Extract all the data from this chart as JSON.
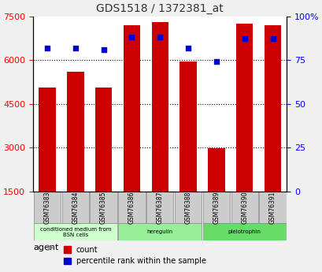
{
  "title": "GDS1518 / 1372381_at",
  "samples": [
    "GSM76383",
    "GSM76384",
    "GSM76385",
    "GSM76386",
    "GSM76387",
    "GSM76388",
    "GSM76389",
    "GSM76390",
    "GSM76391"
  ],
  "counts": [
    5050,
    5600,
    5050,
    7200,
    7300,
    5950,
    2980,
    7250,
    7200
  ],
  "percentiles": [
    82,
    82,
    81,
    88,
    88,
    82,
    74,
    87,
    87
  ],
  "ylim_left": [
    1500,
    7500
  ],
  "ylim_right": [
    0,
    100
  ],
  "yticks_left": [
    1500,
    3000,
    4500,
    6000,
    7500
  ],
  "yticks_right": [
    0,
    25,
    50,
    75,
    100
  ],
  "bar_color": "#cc0000",
  "marker_color": "#0000cc",
  "bar_width": 0.6,
  "groups": [
    {
      "label": "conditioned medium from\nBSN cells",
      "start": 0,
      "end": 3,
      "color": "#ccffcc"
    },
    {
      "label": "heregulin",
      "start": 3,
      "end": 6,
      "color": "#99ee99"
    },
    {
      "label": "pleiotrophin",
      "start": 6,
      "end": 9,
      "color": "#66dd66"
    }
  ],
  "legend_count_color": "#cc0000",
  "legend_marker_color": "#0000cc",
  "grid_color": "#000000",
  "bg_color": "#dddddd",
  "plot_bg": "#ffffff",
  "title_color": "#333333"
}
